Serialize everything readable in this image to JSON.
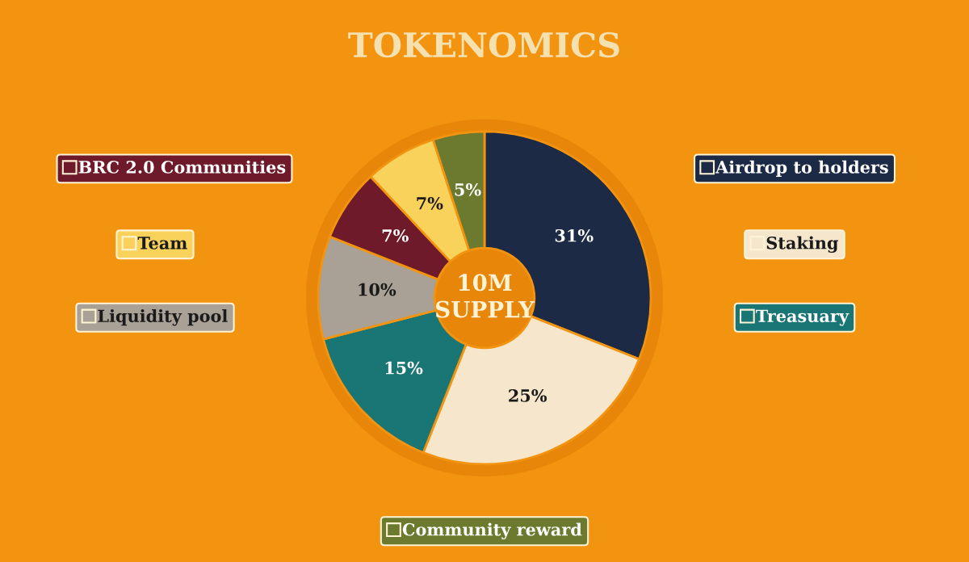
{
  "chart_data": {
    "type": "donut",
    "title": "TOKENOMICS",
    "categories": [
      "Airdrop to holders",
      "Staking",
      "Treasuary",
      "Liquidity pool",
      "BRC 2.0 Communities",
      "Team",
      "Community reward"
    ],
    "values": [
      31,
      25,
      15,
      10,
      7,
      7,
      5
    ],
    "colors": [
      "#1c2a45",
      "#f5e6cc",
      "#1a7674",
      "#a9a196",
      "#6e1a2a",
      "#f8d25a",
      "#6b7a2e"
    ],
    "value_labels": [
      "31%",
      "25%",
      "15%",
      "10%",
      "7%",
      "7%",
      "5%"
    ],
    "annotations": [
      "10M\nSUPPLY"
    ],
    "legend": "left"
  }
}
